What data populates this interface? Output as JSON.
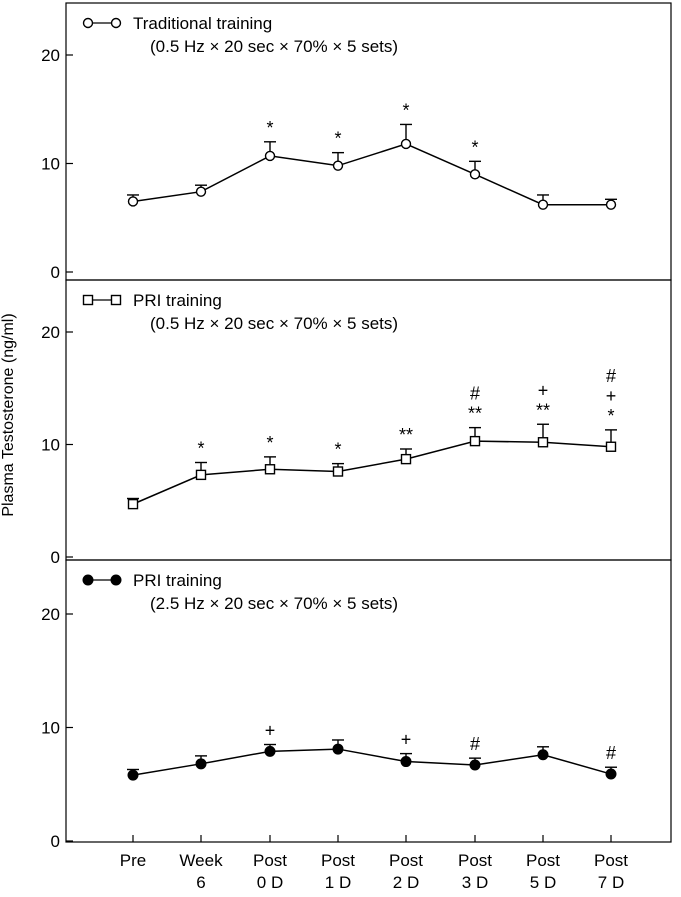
{
  "chart_data": {
    "type": "line",
    "ylabel": "Plasma Testosterone (ng/ml)",
    "categories": [
      [
        "Pre"
      ],
      [
        "Week",
        "6"
      ],
      [
        "Post",
        "0 D"
      ],
      [
        "Post",
        "1 D"
      ],
      [
        "Post",
        "2 D"
      ],
      [
        "Post",
        "3 D"
      ],
      [
        "Post",
        "5 D"
      ],
      [
        "Post",
        "7 D"
      ]
    ],
    "ylim": [
      0,
      24
    ],
    "yticks": [
      0,
      10,
      20
    ],
    "panels": [
      {
        "legend_title": "Traditional training",
        "legend_subtitle": "(0.5 Hz × 20 sec × 70% × 5 sets)",
        "marker": "open-circle",
        "values": [
          6.5,
          7.4,
          10.7,
          9.8,
          11.8,
          9.0,
          6.2,
          6.2
        ],
        "errors": [
          0.6,
          0.6,
          1.3,
          1.2,
          1.8,
          1.2,
          0.9,
          0.5
        ],
        "annotations": [
          [],
          [],
          [
            "*"
          ],
          [
            "*"
          ],
          [
            "*"
          ],
          [
            "*"
          ],
          [],
          []
        ]
      },
      {
        "legend_title": "PRI training",
        "legend_subtitle": "(0.5 Hz × 20 sec × 70% × 5 sets)",
        "marker": "open-square",
        "values": [
          4.7,
          7.3,
          7.8,
          7.6,
          8.7,
          10.3,
          10.2,
          9.8
        ],
        "errors": [
          0.5,
          1.1,
          1.1,
          0.7,
          0.9,
          1.2,
          1.6,
          1.5
        ],
        "annotations": [
          [],
          [
            "*"
          ],
          [
            "*"
          ],
          [
            "*"
          ],
          [
            "**"
          ],
          [
            "#",
            "**"
          ],
          [
            "+",
            "**"
          ],
          [
            "#",
            "+",
            "*"
          ]
        ]
      },
      {
        "legend_title": "PRI training",
        "legend_subtitle": "(2.5 Hz × 20 sec × 70% × 5 sets)",
        "marker": "filled-circle",
        "values": [
          5.8,
          6.8,
          7.9,
          8.1,
          7.0,
          6.7,
          7.6,
          5.9
        ],
        "errors": [
          0.5,
          0.7,
          0.6,
          0.8,
          0.7,
          0.6,
          0.7,
          0.6
        ],
        "annotations": [
          [],
          [],
          [
            "+"
          ],
          [],
          [
            "+"
          ],
          [
            "#"
          ],
          [],
          [
            "#"
          ]
        ]
      }
    ]
  }
}
